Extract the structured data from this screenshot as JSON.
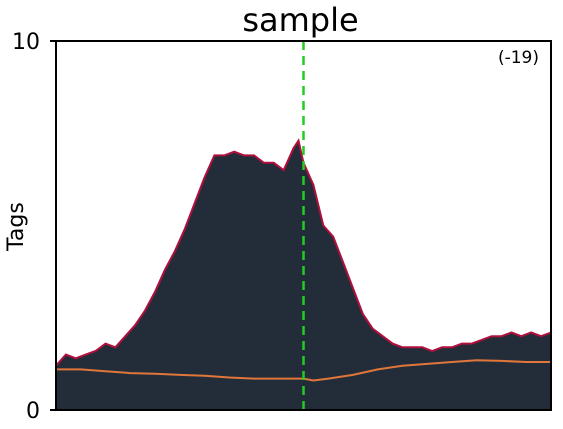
{
  "chart_data": {
    "type": "area",
    "title": "sample",
    "ylabel": "Tags",
    "xlabel": "",
    "ylim": [
      0,
      10
    ],
    "yticks": [
      "0",
      "10"
    ],
    "xlim": [
      0,
      100
    ],
    "grid": false,
    "annotation": "(-19)",
    "vline": {
      "x": 50,
      "color": "#22cc22",
      "style": "dashed"
    },
    "colors": {
      "fill": "#232d3a",
      "outline": "#b0103c",
      "control": "#e0763a",
      "axis": "#000000"
    },
    "series": [
      {
        "role": "signal",
        "x": [
          0,
          2,
          4,
          6,
          8,
          10,
          12,
          14,
          16,
          18,
          20,
          22,
          24,
          26,
          28,
          30,
          32,
          34,
          36,
          38,
          40,
          42,
          44,
          46,
          48,
          49,
          50,
          52,
          54,
          56,
          58,
          60,
          62,
          64,
          66,
          68,
          70,
          72,
          74,
          76,
          78,
          80,
          82,
          84,
          86,
          88,
          90,
          92,
          94,
          96,
          98,
          100
        ],
        "y": [
          1.2,
          1.5,
          1.4,
          1.5,
          1.6,
          1.8,
          1.7,
          2.0,
          2.3,
          2.7,
          3.2,
          3.8,
          4.3,
          4.9,
          5.6,
          6.3,
          6.9,
          6.9,
          7.0,
          6.9,
          6.9,
          6.7,
          6.7,
          6.5,
          7.1,
          7.3,
          6.7,
          6.1,
          5.0,
          4.7,
          4.0,
          3.3,
          2.6,
          2.2,
          2.0,
          1.8,
          1.7,
          1.7,
          1.7,
          1.6,
          1.7,
          1.7,
          1.8,
          1.8,
          1.9,
          2.0,
          2.0,
          2.1,
          2.0,
          2.1,
          2.0,
          2.1
        ]
      },
      {
        "role": "control",
        "x": [
          0,
          5,
          10,
          15,
          20,
          25,
          30,
          35,
          40,
          45,
          50,
          52,
          55,
          60,
          65,
          70,
          75,
          80,
          85,
          90,
          95,
          100
        ],
        "y": [
          1.1,
          1.1,
          1.05,
          1.0,
          0.98,
          0.95,
          0.93,
          0.88,
          0.85,
          0.85,
          0.85,
          0.8,
          0.85,
          0.95,
          1.1,
          1.2,
          1.25,
          1.3,
          1.35,
          1.33,
          1.3,
          1.3
        ]
      }
    ]
  }
}
